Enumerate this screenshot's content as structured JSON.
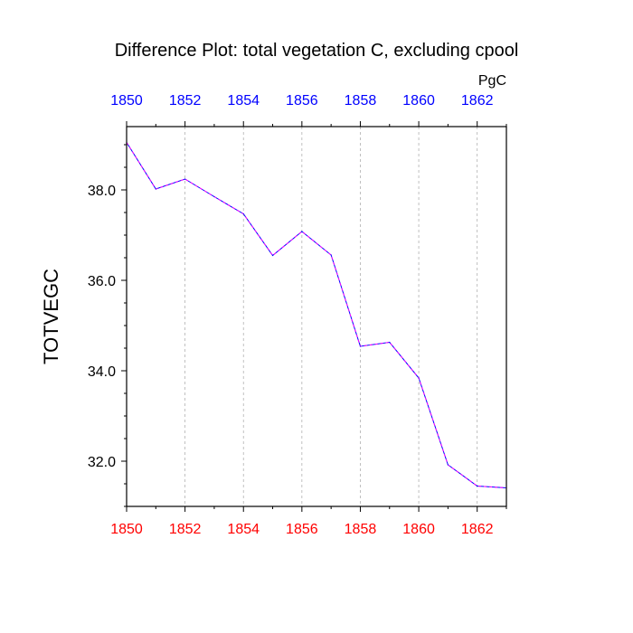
{
  "chart_data": {
    "type": "line",
    "title": "Difference Plot: total vegetation C, excluding cpool",
    "units": "PgC",
    "ylabel": "TOTVEGC",
    "xlabel": "",
    "x": [
      1850,
      1851,
      1852,
      1853,
      1854,
      1855,
      1856,
      1857,
      1858,
      1859,
      1860,
      1861,
      1862,
      1863
    ],
    "series": [
      {
        "name": "TOTVEGC",
        "values": [
          39.05,
          38.02,
          38.24,
          37.85,
          37.47,
          36.55,
          37.08,
          36.56,
          34.54,
          34.63,
          33.84,
          31.92,
          31.45,
          31.41
        ]
      }
    ],
    "xlim": [
      1850,
      1863
    ],
    "ylim": [
      31.0,
      39.4
    ],
    "x_ticks": [
      "1850",
      "1852",
      "1854",
      "1856",
      "1858",
      "1860",
      "1862"
    ],
    "y_ticks": [
      "32.0",
      "34.0",
      "36.0",
      "38.0"
    ],
    "grid": "vertical dashed",
    "colors": {
      "line_primary": "#0000ff",
      "line_dash": "#ff00ff",
      "top_axis_labels": "#0000ff",
      "bottom_axis_labels": "#ff0000",
      "grid": "#b0b0b0",
      "text": "#000000"
    }
  }
}
